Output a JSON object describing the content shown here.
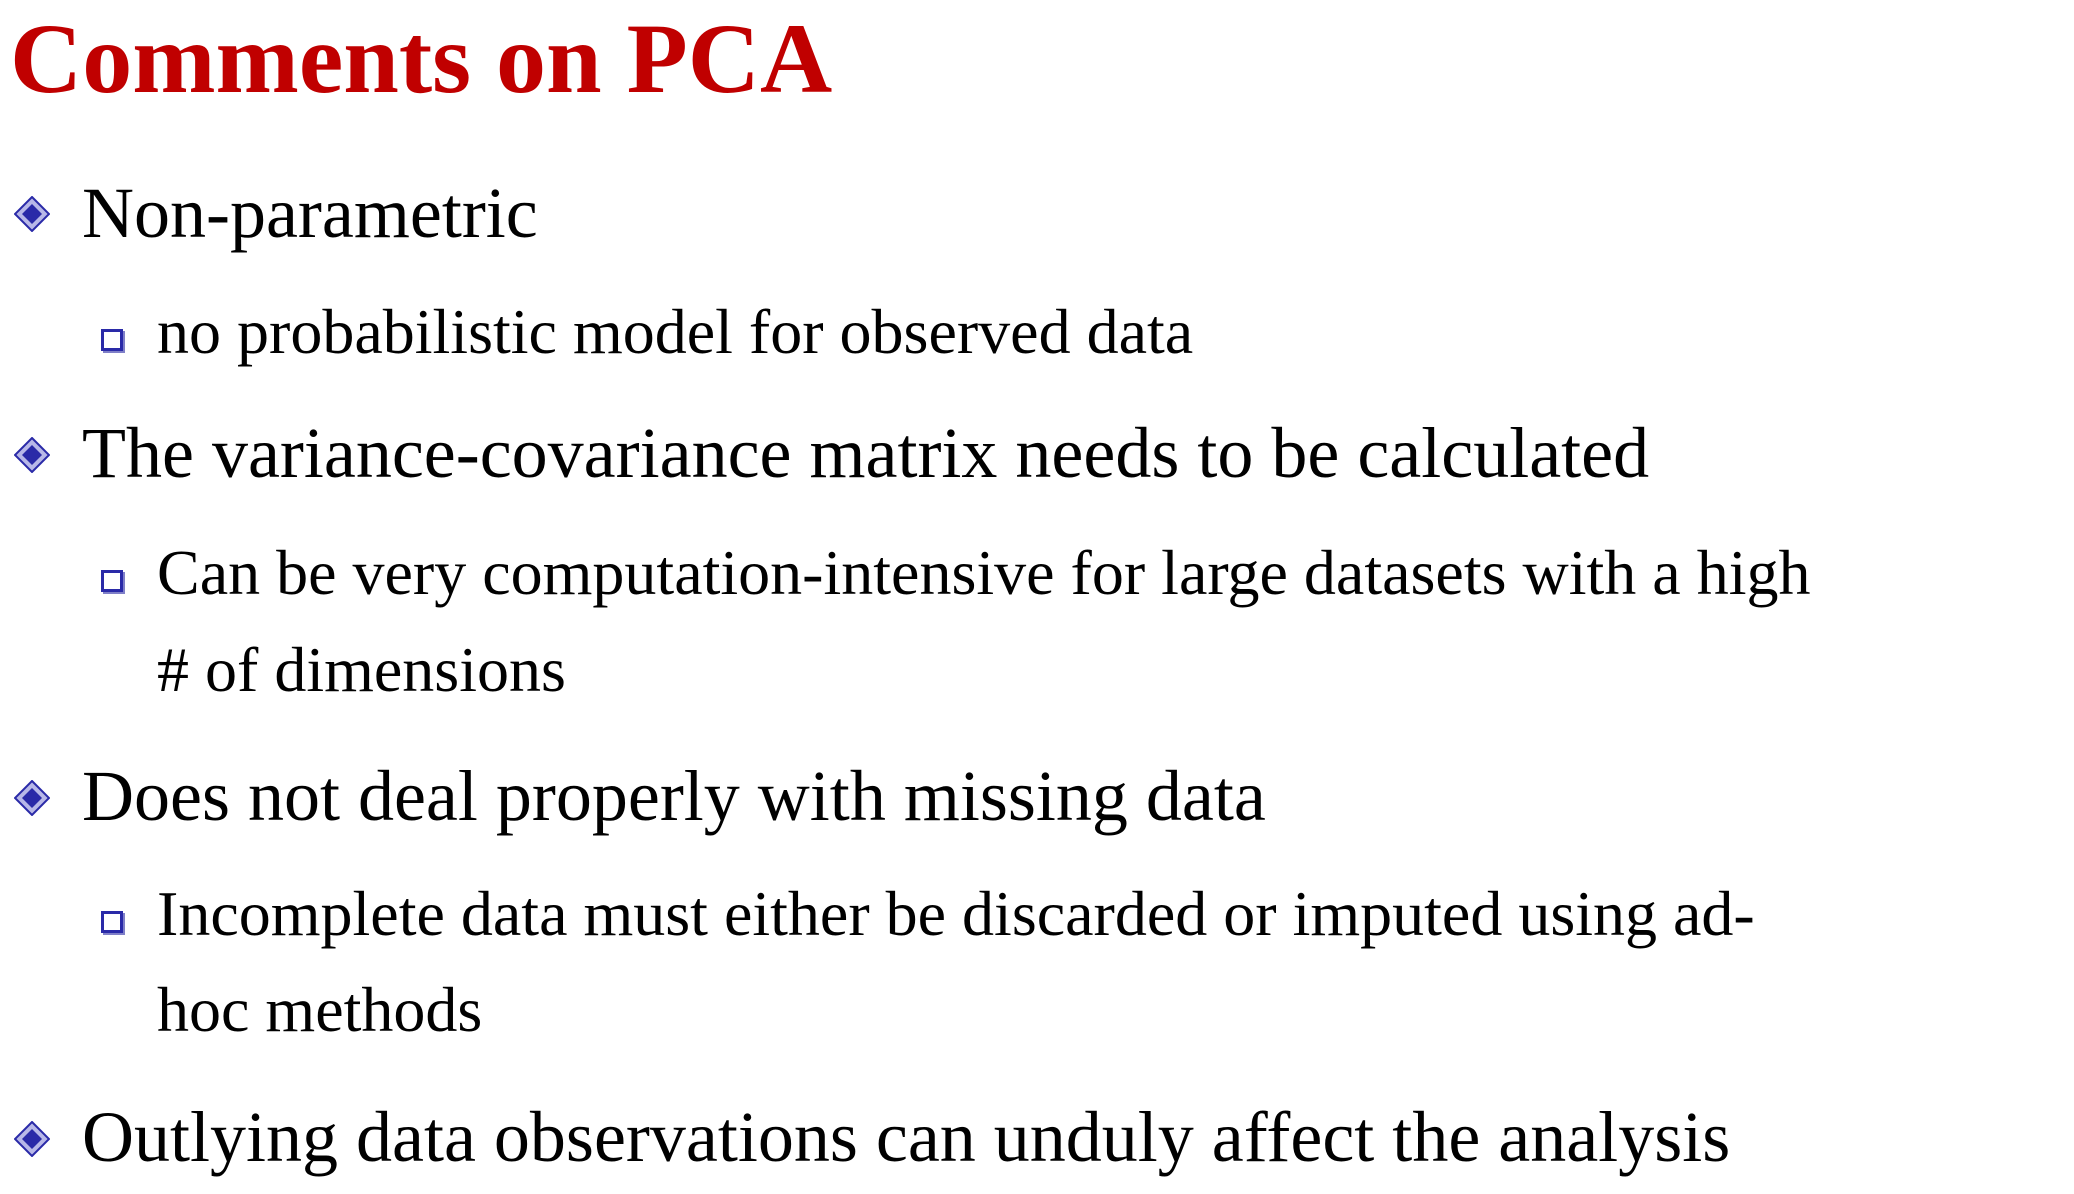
{
  "slide": {
    "title": "Comments on PCA",
    "colors": {
      "title": "#c00000",
      "bullet": "#2a2aa8",
      "text": "#000000"
    },
    "bullet_icons": {
      "level1": "diamond-bullet-icon",
      "level2": "square-bullet-icon"
    },
    "items": [
      {
        "text": "Non-parametric",
        "subitems": [
          {
            "lines": [
              "no probabilistic model for observed data"
            ]
          }
        ]
      },
      {
        "text": "The variance-covariance matrix needs to be calculated",
        "subitems": [
          {
            "lines": [
              "Can be very computation-intensive for large datasets with a high",
              "# of dimensions"
            ]
          }
        ]
      },
      {
        "text": "Does not deal properly with missing data",
        "subitems": [
          {
            "lines": [
              "Incomplete data must either be discarded or imputed using ad-",
              "hoc methods"
            ]
          }
        ]
      },
      {
        "text": "Outlying data observations can unduly affect the analysis",
        "subitems": []
      }
    ]
  }
}
